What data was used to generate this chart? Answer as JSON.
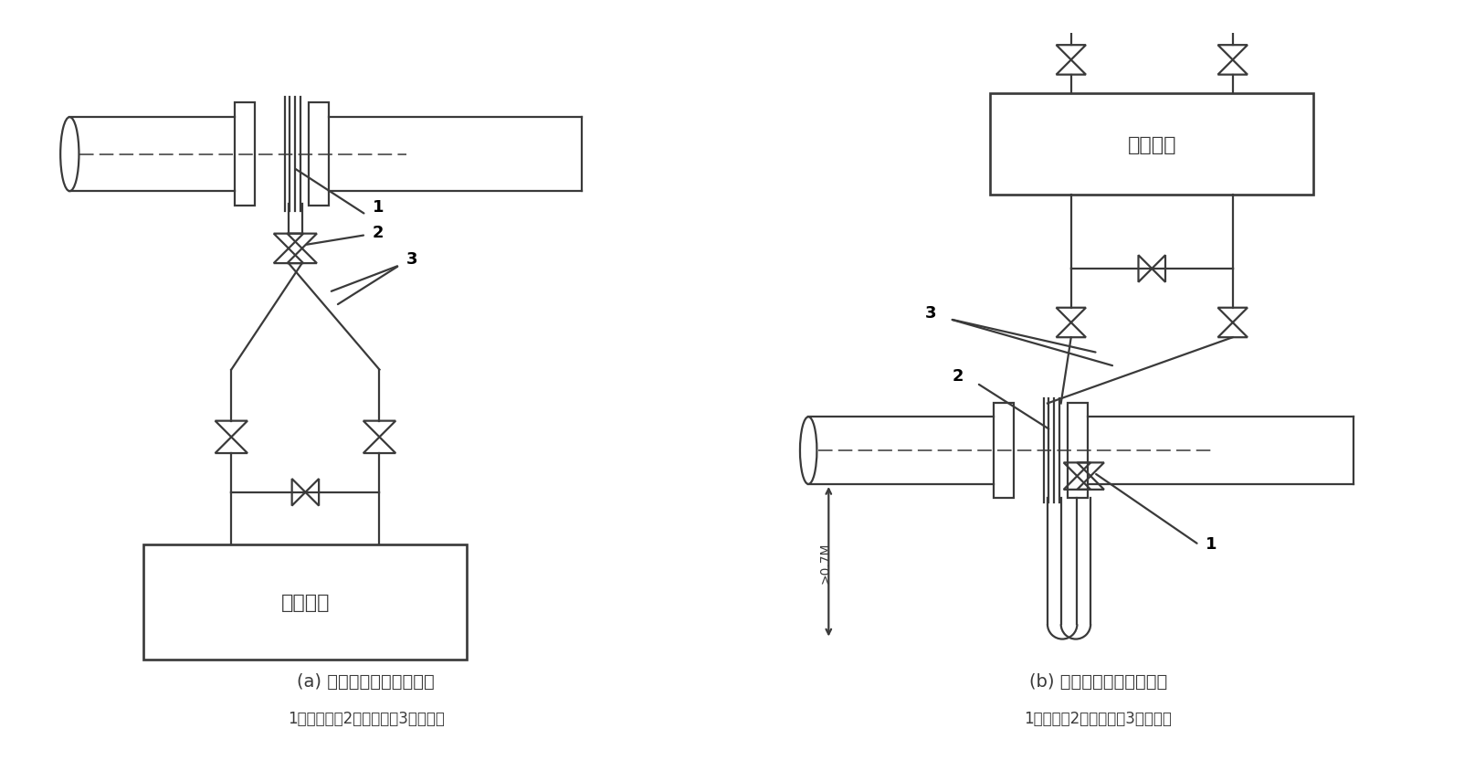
{
  "bg_color": "#ffffff",
  "lc": "#3a3a3a",
  "lw": 1.6,
  "title_a": "(a) 仪表装在节流装置下方",
  "title_b": "(b) 仪表装在节流装置上方",
  "legend_a": "1、节流装置2、截止钢铁3、导压管",
  "legend_b": "1、截止阀2、节流装置3、导压管",
  "instrument_label": "差压仪表",
  "dim_label": ">0.7M"
}
